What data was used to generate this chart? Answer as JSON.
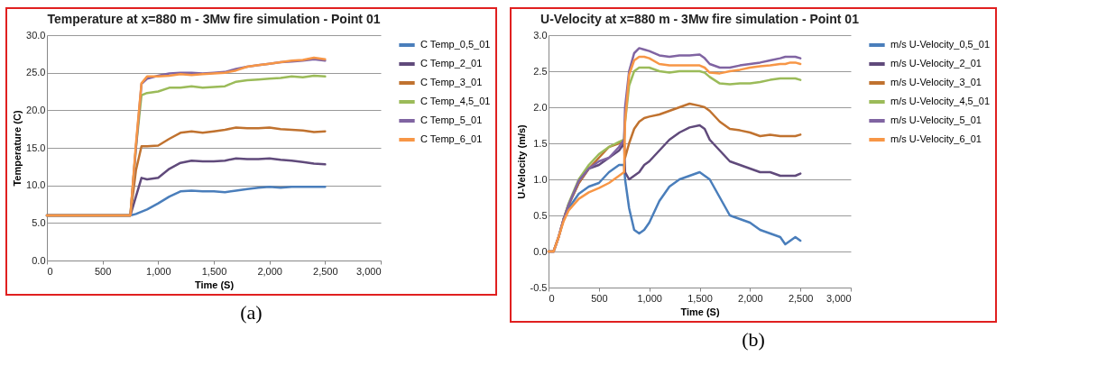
{
  "chart_data": [
    {
      "type": "line",
      "title": "Temperature at x=880 m - 3Mw fire simulation - Point 01",
      "xlabel": "Time (S)",
      "ylabel": "Temperature (C)",
      "annotations": [
        "(a)"
      ],
      "legend": "right",
      "grid": "y",
      "xlim": [
        0,
        3000
      ],
      "xticks": [
        {
          "value": 0,
          "label": "0"
        },
        {
          "value": 500,
          "label": "500"
        },
        {
          "value": 1000,
          "label": "1,000"
        },
        {
          "value": 1500,
          "label": "1,500"
        },
        {
          "value": 2000,
          "label": "2,000"
        },
        {
          "value": 2500,
          "label": "2,500"
        },
        {
          "value": 3000,
          "label": "3,000"
        }
      ],
      "ylim": [
        0,
        30
      ],
      "yticks": [
        {
          "value": 0,
          "label": "0.0"
        },
        {
          "value": 5,
          "label": "5.0"
        },
        {
          "value": 10,
          "label": "10.0"
        },
        {
          "value": 15,
          "label": "15.0"
        },
        {
          "value": 20,
          "label": "20.0"
        },
        {
          "value": 25,
          "label": "25.0"
        },
        {
          "value": 30,
          "label": "30.0"
        }
      ],
      "x": [
        0,
        750,
        800,
        850,
        900,
        1000,
        1100,
        1200,
        1300,
        1400,
        1500,
        1600,
        1700,
        1800,
        1900,
        2000,
        2100,
        2200,
        2300,
        2400,
        2500
      ],
      "series": [
        {
          "name": "C Temp_0,5_01",
          "color": "#4a7ebb",
          "values": [
            6,
            6,
            6.2,
            6.5,
            6.8,
            7.6,
            8.5,
            9.2,
            9.3,
            9.2,
            9.2,
            9.1,
            9.3,
            9.5,
            9.7,
            9.8,
            9.7,
            9.8,
            9.8,
            9.8,
            9.8
          ]
        },
        {
          "name": "C Temp_2_01",
          "color": "#604a7b",
          "values": [
            6,
            6,
            8.5,
            11,
            10.8,
            11,
            12.2,
            13,
            13.3,
            13.2,
            13.2,
            13.3,
            13.6,
            13.5,
            13.5,
            13.6,
            13.4,
            13.3,
            13.1,
            12.9,
            12.8
          ]
        },
        {
          "name": "C Temp_3_01",
          "color": "#c0722f",
          "values": [
            6,
            6,
            12,
            15.2,
            15.2,
            15.3,
            16.2,
            17,
            17.2,
            17,
            17.2,
            17.4,
            17.7,
            17.6,
            17.6,
            17.7,
            17.5,
            17.4,
            17.3,
            17.1,
            17.2
          ]
        },
        {
          "name": "C Temp_4,5_01",
          "color": "#9bbb59",
          "values": [
            6,
            6,
            15,
            22,
            22.3,
            22.5,
            23,
            23,
            23.2,
            23,
            23.1,
            23.2,
            23.8,
            24,
            24.1,
            24.2,
            24.3,
            24.5,
            24.4,
            24.6,
            24.5
          ]
        },
        {
          "name": "C Temp_5_01",
          "color": "#8064a2",
          "values": [
            6,
            6,
            15,
            23.5,
            24.2,
            24.6,
            24.9,
            25,
            25,
            24.9,
            25,
            25.1,
            25.5,
            25.8,
            26,
            26.2,
            26.4,
            26.5,
            26.6,
            26.8,
            26.6
          ]
        },
        {
          "name": "C Temp_6_01",
          "color": "#f79646",
          "values": [
            6,
            6,
            15.5,
            23.6,
            24.5,
            24.5,
            24.6,
            24.8,
            24.7,
            24.8,
            24.9,
            25,
            25.3,
            25.8,
            26,
            26.2,
            26.4,
            26.6,
            26.7,
            27,
            26.8
          ]
        }
      ]
    },
    {
      "type": "line",
      "title": "U-Velocity at x=880 m - 3Mw fire simulation - Point 01",
      "xlabel": "Time (S)",
      "ylabel": "U-Velocity (m/s)",
      "annotations": [
        "(b)"
      ],
      "legend": "right",
      "grid": "y",
      "xlim": [
        0,
        3000
      ],
      "xticks": [
        {
          "value": 0,
          "label": "0"
        },
        {
          "value": 500,
          "label": "500"
        },
        {
          "value": 1000,
          "label": "1,000"
        },
        {
          "value": 1500,
          "label": "1,500"
        },
        {
          "value": 2000,
          "label": "2,000"
        },
        {
          "value": 2500,
          "label": "2,500"
        },
        {
          "value": 3000,
          "label": "3,000"
        }
      ],
      "ylim": [
        -0.5,
        3
      ],
      "yticks": [
        {
          "value": -0.5,
          "label": "-0.5"
        },
        {
          "value": 0,
          "label": "0.0"
        },
        {
          "value": 0.5,
          "label": "0.5"
        },
        {
          "value": 1,
          "label": "1.0"
        },
        {
          "value": 1.5,
          "label": "1.5"
        },
        {
          "value": 2,
          "label": "2.0"
        },
        {
          "value": 2.5,
          "label": "2.5"
        },
        {
          "value": 3,
          "label": "3.0"
        }
      ],
      "x": [
        0,
        50,
        100,
        150,
        200,
        300,
        400,
        500,
        600,
        700,
        750,
        760,
        800,
        850,
        900,
        950,
        1000,
        1100,
        1200,
        1300,
        1400,
        1500,
        1550,
        1600,
        1700,
        1800,
        1900,
        2000,
        2100,
        2200,
        2300,
        2350,
        2400,
        2450,
        2500
      ],
      "series": [
        {
          "name": "m/s U-Velocity_0,5_01",
          "color": "#4a7ebb",
          "values": [
            null,
            null,
            null,
            0.45,
            0.6,
            0.8,
            0.9,
            0.95,
            1.1,
            1.2,
            1.2,
            1.0,
            0.6,
            0.3,
            0.25,
            0.3,
            0.4,
            0.7,
            0.9,
            1.0,
            1.05,
            1.1,
            1.05,
            1.0,
            0.75,
            0.5,
            0.45,
            0.4,
            0.3,
            0.25,
            0.2,
            0.1,
            0.15,
            0.2,
            0.15
          ]
        },
        {
          "name": "m/s U-Velocity_2_01",
          "color": "#604a7b",
          "values": [
            0,
            0,
            0.2,
            0.45,
            0.65,
            0.95,
            1.15,
            1.2,
            1.3,
            1.4,
            1.5,
            1.1,
            1.0,
            1.05,
            1.1,
            1.2,
            1.25,
            1.4,
            1.55,
            1.65,
            1.72,
            1.75,
            1.7,
            1.55,
            1.4,
            1.25,
            1.2,
            1.15,
            1.1,
            1.1,
            1.05,
            1.05,
            1.05,
            1.05,
            1.08
          ]
        },
        {
          "name": "m/s U-Velocity_3_01",
          "color": "#c0722f",
          "values": [
            0,
            0,
            0.2,
            0.45,
            0.65,
            0.95,
            1.15,
            1.3,
            1.45,
            1.5,
            1.55,
            1.3,
            1.5,
            1.7,
            1.8,
            1.85,
            1.87,
            1.9,
            1.95,
            2.0,
            2.05,
            2.02,
            2.0,
            1.95,
            1.8,
            1.7,
            1.68,
            1.65,
            1.6,
            1.62,
            1.6,
            1.6,
            1.6,
            1.6,
            1.62
          ]
        },
        {
          "name": "m/s U-Velocity_4,5_01",
          "color": "#9bbb59",
          "values": [
            null,
            null,
            null,
            0.45,
            0.67,
            1.0,
            1.2,
            1.35,
            1.45,
            1.52,
            1.55,
            1.8,
            2.3,
            2.5,
            2.55,
            2.55,
            2.55,
            2.5,
            2.48,
            2.5,
            2.5,
            2.5,
            2.48,
            2.42,
            2.33,
            2.32,
            2.33,
            2.33,
            2.35,
            2.38,
            2.4,
            2.4,
            2.4,
            2.4,
            2.38
          ]
        },
        {
          "name": "m/s U-Velocity_5_01",
          "color": "#8064a2",
          "values": [
            0,
            0,
            0.2,
            0.45,
            0.65,
            0.98,
            1.15,
            1.25,
            1.3,
            1.45,
            1.55,
            2.0,
            2.5,
            2.75,
            2.82,
            2.8,
            2.78,
            2.72,
            2.7,
            2.72,
            2.72,
            2.73,
            2.68,
            2.6,
            2.55,
            2.55,
            2.58,
            2.6,
            2.62,
            2.65,
            2.68,
            2.7,
            2.7,
            2.7,
            2.68
          ]
        },
        {
          "name": "m/s U-Velocity_6_01",
          "color": "#f79646",
          "values": [
            0,
            0,
            0.2,
            0.42,
            0.57,
            0.73,
            0.82,
            0.88,
            0.95,
            1.05,
            1.1,
            1.8,
            2.45,
            2.65,
            2.7,
            2.7,
            2.68,
            2.6,
            2.58,
            2.58,
            2.58,
            2.58,
            2.55,
            2.48,
            2.47,
            2.5,
            2.52,
            2.55,
            2.57,
            2.58,
            2.6,
            2.6,
            2.62,
            2.62,
            2.6
          ]
        }
      ]
    }
  ]
}
